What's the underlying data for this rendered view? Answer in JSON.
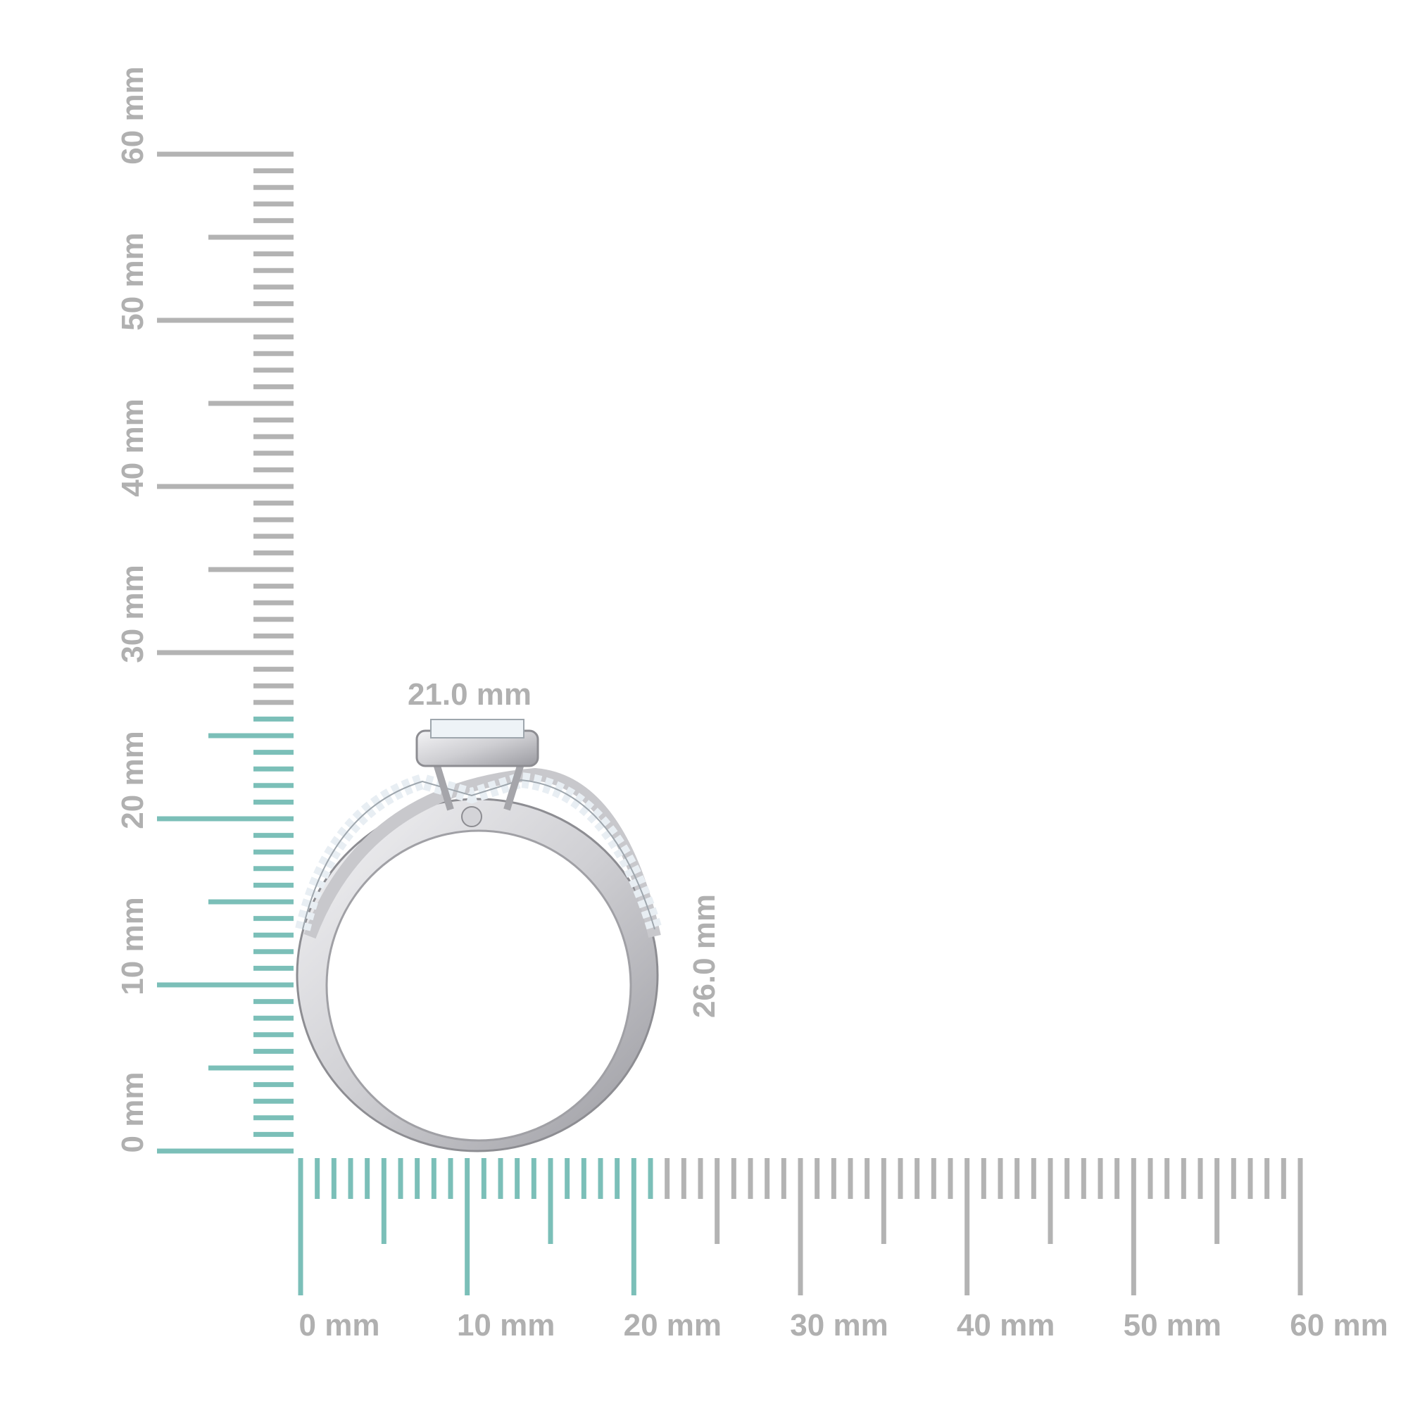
{
  "vertical_ruler": {
    "range_mm": [
      0,
      60
    ],
    "highlight_to_mm": 26,
    "labels": [
      "0 mm",
      "10 mm",
      "20 mm",
      "30 mm",
      "40 mm",
      "50 mm",
      "60 mm"
    ]
  },
  "horizontal_ruler": {
    "range_mm": [
      0,
      60
    ],
    "highlight_to_mm": 21,
    "labels": [
      "0 mm",
      "10 mm",
      "20 mm",
      "30 mm",
      "40 mm",
      "50 mm",
      "60 mm"
    ]
  },
  "dimensions": {
    "width_label": "21.0 mm",
    "height_label": "26.0 mm"
  },
  "colors": {
    "highlight": "#7bbfb8",
    "ruler": "#b3b3b3",
    "label": "#b0b0b0",
    "metal": "#d9d9dc"
  }
}
